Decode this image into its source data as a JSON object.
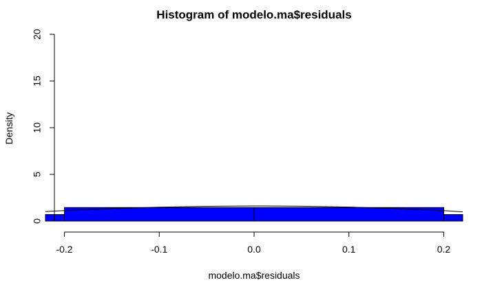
{
  "chart_data": {
    "type": "bar",
    "title": "Histogram of modelo.ma$residuals",
    "xlabel": "modelo.ma$residuals",
    "ylabel": "Density",
    "xlim": [
      -0.22,
      0.22
    ],
    "ylim": [
      0,
      20
    ],
    "x_ticks": [
      -0.2,
      -0.1,
      0.0,
      0.1,
      0.2
    ],
    "x_tick_labels": [
      "-0.2",
      "-0.1",
      "0.0",
      "0.1",
      "0.2"
    ],
    "y_ticks": [
      0,
      5,
      10,
      15,
      20
    ],
    "y_tick_labels": [
      "0",
      "5",
      "10",
      "15",
      "20"
    ],
    "bins": [
      {
        "start": -0.4,
        "end": -0.2,
        "density": 0.7
      },
      {
        "start": -0.2,
        "end": 0.0,
        "density": 1.45
      },
      {
        "start": 0.0,
        "end": 0.2,
        "density": 1.45
      },
      {
        "start": 0.2,
        "end": 0.4,
        "density": 0.7
      }
    ],
    "density_curve": {
      "x": [
        -0.22,
        -0.2,
        -0.15,
        -0.1,
        -0.05,
        0.0,
        0.05,
        0.1,
        0.15,
        0.2,
        0.22
      ],
      "y": [
        1.02,
        1.12,
        1.33,
        1.49,
        1.58,
        1.62,
        1.59,
        1.5,
        1.33,
        1.12,
        0.98
      ]
    },
    "bar_color": "#0000ff",
    "bar_border_color": "#000000",
    "curve_color": "#000000",
    "grid": false,
    "legend": "none"
  }
}
